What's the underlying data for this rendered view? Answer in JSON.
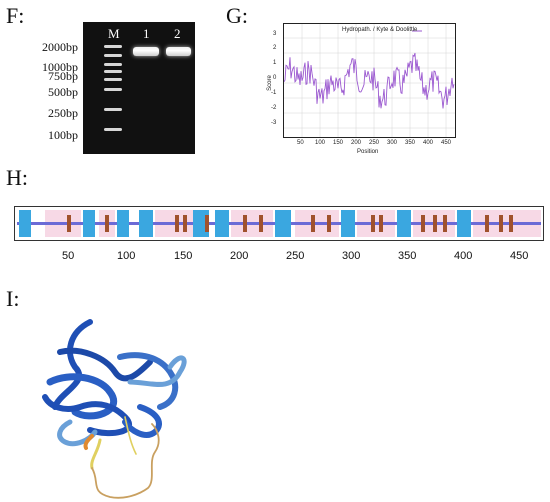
{
  "panels": {
    "f": "F:",
    "g": "G:",
    "h": "H:",
    "i": "I:"
  },
  "gel": {
    "lanes": [
      "M",
      "1",
      "2"
    ],
    "markers": [
      "2000bp",
      "1000bp",
      "750bp",
      "500bp",
      "250bp",
      "100bp"
    ]
  },
  "hydropathy": {
    "legend": "Hydropath. / Kyte & Doolittle",
    "xlabel": "Position",
    "ylabel": "Score",
    "x_ticks": [
      "50",
      "100",
      "150",
      "200",
      "250",
      "300",
      "350",
      "400",
      "450"
    ],
    "y_ticks": [
      "3",
      "2",
      "1",
      "0",
      "-1",
      "-2",
      "-3"
    ],
    "line_color": "#9b59d0"
  },
  "topology": {
    "ticks": [
      "50",
      "100",
      "150",
      "200",
      "250",
      "300",
      "350",
      "400",
      "450"
    ],
    "colors": {
      "helix": "#3aa7e0",
      "strand": "#a0522d",
      "coil": "#6b6bd6",
      "shade": "#f7d9e6"
    }
  },
  "structure": {
    "colors": {
      "high": "#1f4fb5",
      "mid": "#6aa0d8",
      "low": "#e0d060",
      "verylow": "#e08a30"
    }
  }
}
